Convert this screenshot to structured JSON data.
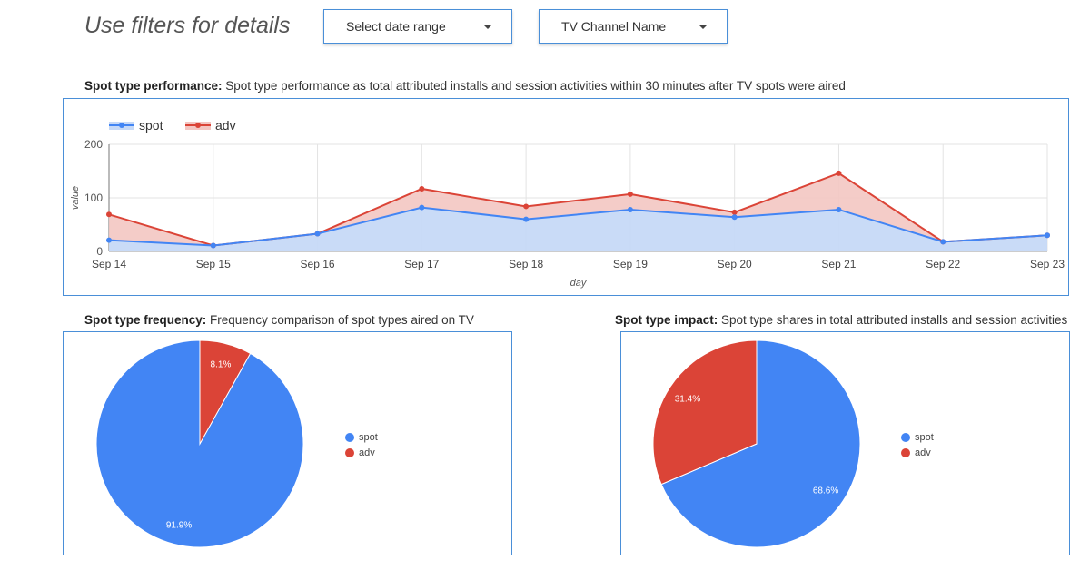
{
  "header": {
    "title": "Use filters for details",
    "date_filter": "Select date range",
    "channel_filter": "TV Channel Name"
  },
  "performance": {
    "heading_bold": "Spot type performance:",
    "heading_text": " Spot type performance as total attributed installs and session activities within 30 minutes after TV spots were aired"
  },
  "frequency": {
    "heading_bold": "Spot type frequency:",
    "heading_text": " Frequency comparison of spot types aired on TV"
  },
  "impact": {
    "heading_bold": "Spot type impact:",
    "heading_text": " Spot type shares in total attributed installs and session activities"
  },
  "colors": {
    "spot": "#4285f4",
    "adv": "#db4437",
    "spot_fill": "#c6d9f7",
    "adv_fill": "#f3c6c2"
  },
  "chart_data": [
    {
      "type": "area",
      "xlabel": "day",
      "ylabel": "value",
      "ylim": [
        0,
        200
      ],
      "yticks": [
        0,
        100,
        200
      ],
      "stacked": true,
      "legend": "top-left",
      "grid": true,
      "categories": [
        "Sep 14",
        "Sep 15",
        "Sep 16",
        "Sep 17",
        "Sep 18",
        "Sep 19",
        "Sep 20",
        "Sep 21",
        "Sep 22",
        "Sep 23"
      ],
      "series": [
        {
          "name": "spot",
          "values": [
            21,
            11,
            33,
            82,
            60,
            78,
            64,
            78,
            18,
            30
          ]
        },
        {
          "name": "adv",
          "values": [
            48,
            0,
            0,
            35,
            24,
            29,
            9,
            68,
            0,
            0
          ]
        }
      ]
    },
    {
      "type": "pie",
      "legend": "right",
      "series": [
        {
          "name": "spot",
          "value": 91.9,
          "label": "91.9%"
        },
        {
          "name": "adv",
          "value": 8.1,
          "label": "8.1%"
        }
      ]
    },
    {
      "type": "pie",
      "legend": "right",
      "series": [
        {
          "name": "spot",
          "value": 68.6,
          "label": "68.6%"
        },
        {
          "name": "adv",
          "value": 31.4,
          "label": "31.4%"
        }
      ]
    }
  ]
}
